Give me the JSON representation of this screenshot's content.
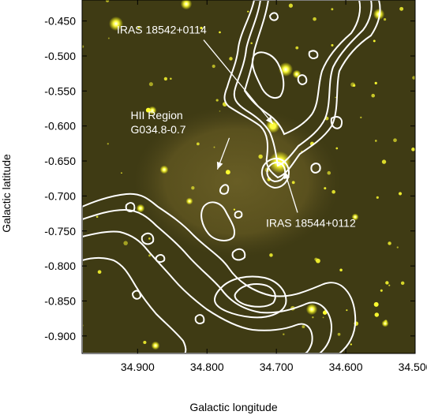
{
  "chart_data": {
    "type": "image-map",
    "xlabel": "Galactic longitude",
    "ylabel": "Galactic latitude",
    "xlim": [
      34.98,
      34.5
    ],
    "ylim": [
      -0.925,
      -0.42
    ],
    "xticks": [
      {
        "value": 34.9,
        "label": "34.900"
      },
      {
        "value": 34.8,
        "label": "34.800"
      },
      {
        "value": 34.7,
        "label": "34.700"
      },
      {
        "value": 34.6,
        "label": "34.600"
      },
      {
        "value": 34.5,
        "label": "34.500"
      }
    ],
    "yticks": [
      {
        "value": -0.45,
        "label": "-0.450"
      },
      {
        "value": -0.5,
        "label": "-0.500"
      },
      {
        "value": -0.55,
        "label": "-0.550"
      },
      {
        "value": -0.6,
        "label": "-0.600"
      },
      {
        "value": -0.65,
        "label": "-0.650"
      },
      {
        "value": -0.7,
        "label": "-0.700"
      },
      {
        "value": -0.75,
        "label": "-0.750"
      },
      {
        "value": -0.8,
        "label": "-0.800"
      },
      {
        "value": -0.85,
        "label": "-0.850"
      },
      {
        "value": -0.9,
        "label": "-0.900"
      }
    ],
    "annotations": [
      {
        "text": [
          "IRAS 18542+0114"
        ],
        "label_at": [
          34.93,
          -0.468
        ],
        "arrow_to": [
          34.705,
          -0.597
        ]
      },
      {
        "text": [
          "HII Region",
          "G034.8-0.7"
        ],
        "label_at": [
          34.91,
          -0.59
        ],
        "arrow_to": [
          34.785,
          -0.662
        ]
      },
      {
        "text": [
          "IRAS 18544+0112"
        ],
        "label_at": [
          34.715,
          -0.744
        ],
        "arrow_to": [
          34.688,
          -0.665
        ]
      }
    ],
    "sources": [
      {
        "name": "IRAS 18542+0114",
        "l": 34.705,
        "b": -0.6
      },
      {
        "name": "IRAS 18544+0112",
        "l": 34.695,
        "b": -0.652
      }
    ],
    "colors": {
      "background_image": "#3f3b14",
      "contours": "#ffffff",
      "stars": "#ffff30"
    }
  }
}
